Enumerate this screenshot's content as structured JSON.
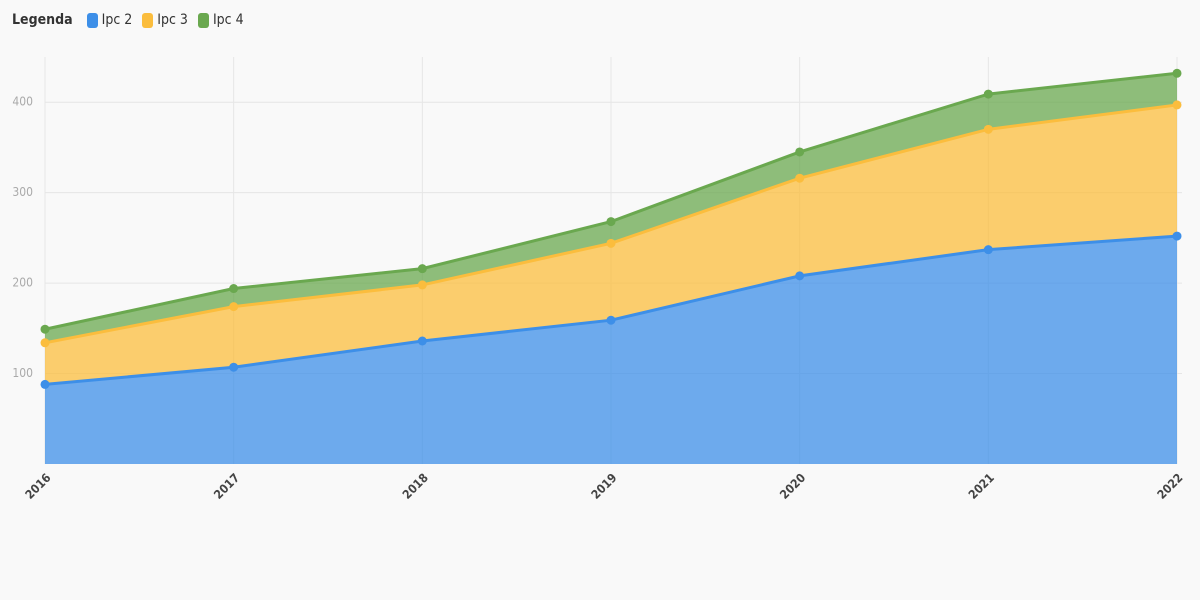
{
  "chart_data": {
    "type": "area",
    "stacked": true,
    "legend_title": "Legenda",
    "categories": [
      "2016",
      "2017",
      "2018",
      "2019",
      "2020",
      "2021",
      "2022"
    ],
    "series": [
      {
        "name": "Ipc 2",
        "color": "#3d8fe8",
        "values": [
          88,
          107,
          136,
          159,
          208,
          237,
          252
        ]
      },
      {
        "name": "Ipc 3",
        "color": "#fbbd3d",
        "values": [
          46,
          67,
          62,
          85,
          108,
          133,
          145
        ]
      },
      {
        "name": "Ipc 4",
        "color": "#6aa84f",
        "values": [
          15,
          20,
          18,
          24,
          29,
          39,
          35
        ]
      }
    ],
    "ylim": [
      0,
      450
    ],
    "yticks": [
      100,
      200,
      300,
      400
    ],
    "grid": true
  }
}
